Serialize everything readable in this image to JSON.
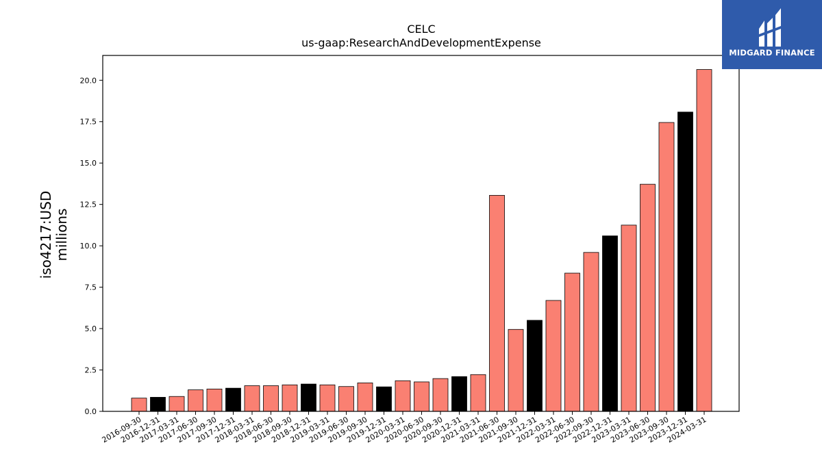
{
  "brand": {
    "name": "MIDGARD FINANCE",
    "bg_color": "#2f5bab"
  },
  "chart_data": {
    "type": "bar",
    "title": "CELC",
    "subtitle": "us-gaap:ResearchAndDevelopmentExpense",
    "ylabel": "iso4217:USD",
    "ylabel_unit": "millions",
    "ylim": [
      0,
      21.5
    ],
    "yticks": [
      "0.0",
      "2.5",
      "5.0",
      "7.5",
      "10.0",
      "12.5",
      "15.0",
      "17.5",
      "20.0"
    ],
    "colors": {
      "quarter": "#fa8072",
      "year_end": "#000000"
    },
    "categories": [
      "2016-09-30",
      "2016-12-31",
      "2017-03-31",
      "2017-06-30",
      "2017-09-30",
      "2017-12-31",
      "2018-03-31",
      "2018-06-30",
      "2018-09-30",
      "2018-12-31",
      "2019-03-31",
      "2019-06-30",
      "2019-09-30",
      "2019-12-31",
      "2020-03-31",
      "2020-06-30",
      "2020-09-30",
      "2020-12-31",
      "2021-03-31",
      "2021-06-30",
      "2021-09-30",
      "2021-12-31",
      "2022-03-31",
      "2022-06-30",
      "2022-09-30",
      "2022-12-31",
      "2023-03-31",
      "2023-06-30",
      "2023-09-30",
      "2023-12-31",
      "2024-03-31"
    ],
    "values": [
      0.8,
      0.85,
      0.9,
      1.3,
      1.35,
      1.4,
      1.55,
      1.55,
      1.6,
      1.65,
      1.6,
      1.5,
      1.72,
      1.48,
      1.85,
      1.78,
      1.98,
      2.1,
      2.22,
      13.05,
      4.95,
      5.5,
      6.7,
      8.35,
      9.6,
      10.6,
      11.25,
      13.72,
      17.45,
      18.08,
      20.65
    ],
    "year_end": [
      false,
      true,
      false,
      false,
      false,
      true,
      false,
      false,
      false,
      true,
      false,
      false,
      false,
      true,
      false,
      false,
      false,
      true,
      false,
      false,
      false,
      true,
      false,
      false,
      false,
      true,
      false,
      false,
      false,
      true,
      false
    ]
  }
}
